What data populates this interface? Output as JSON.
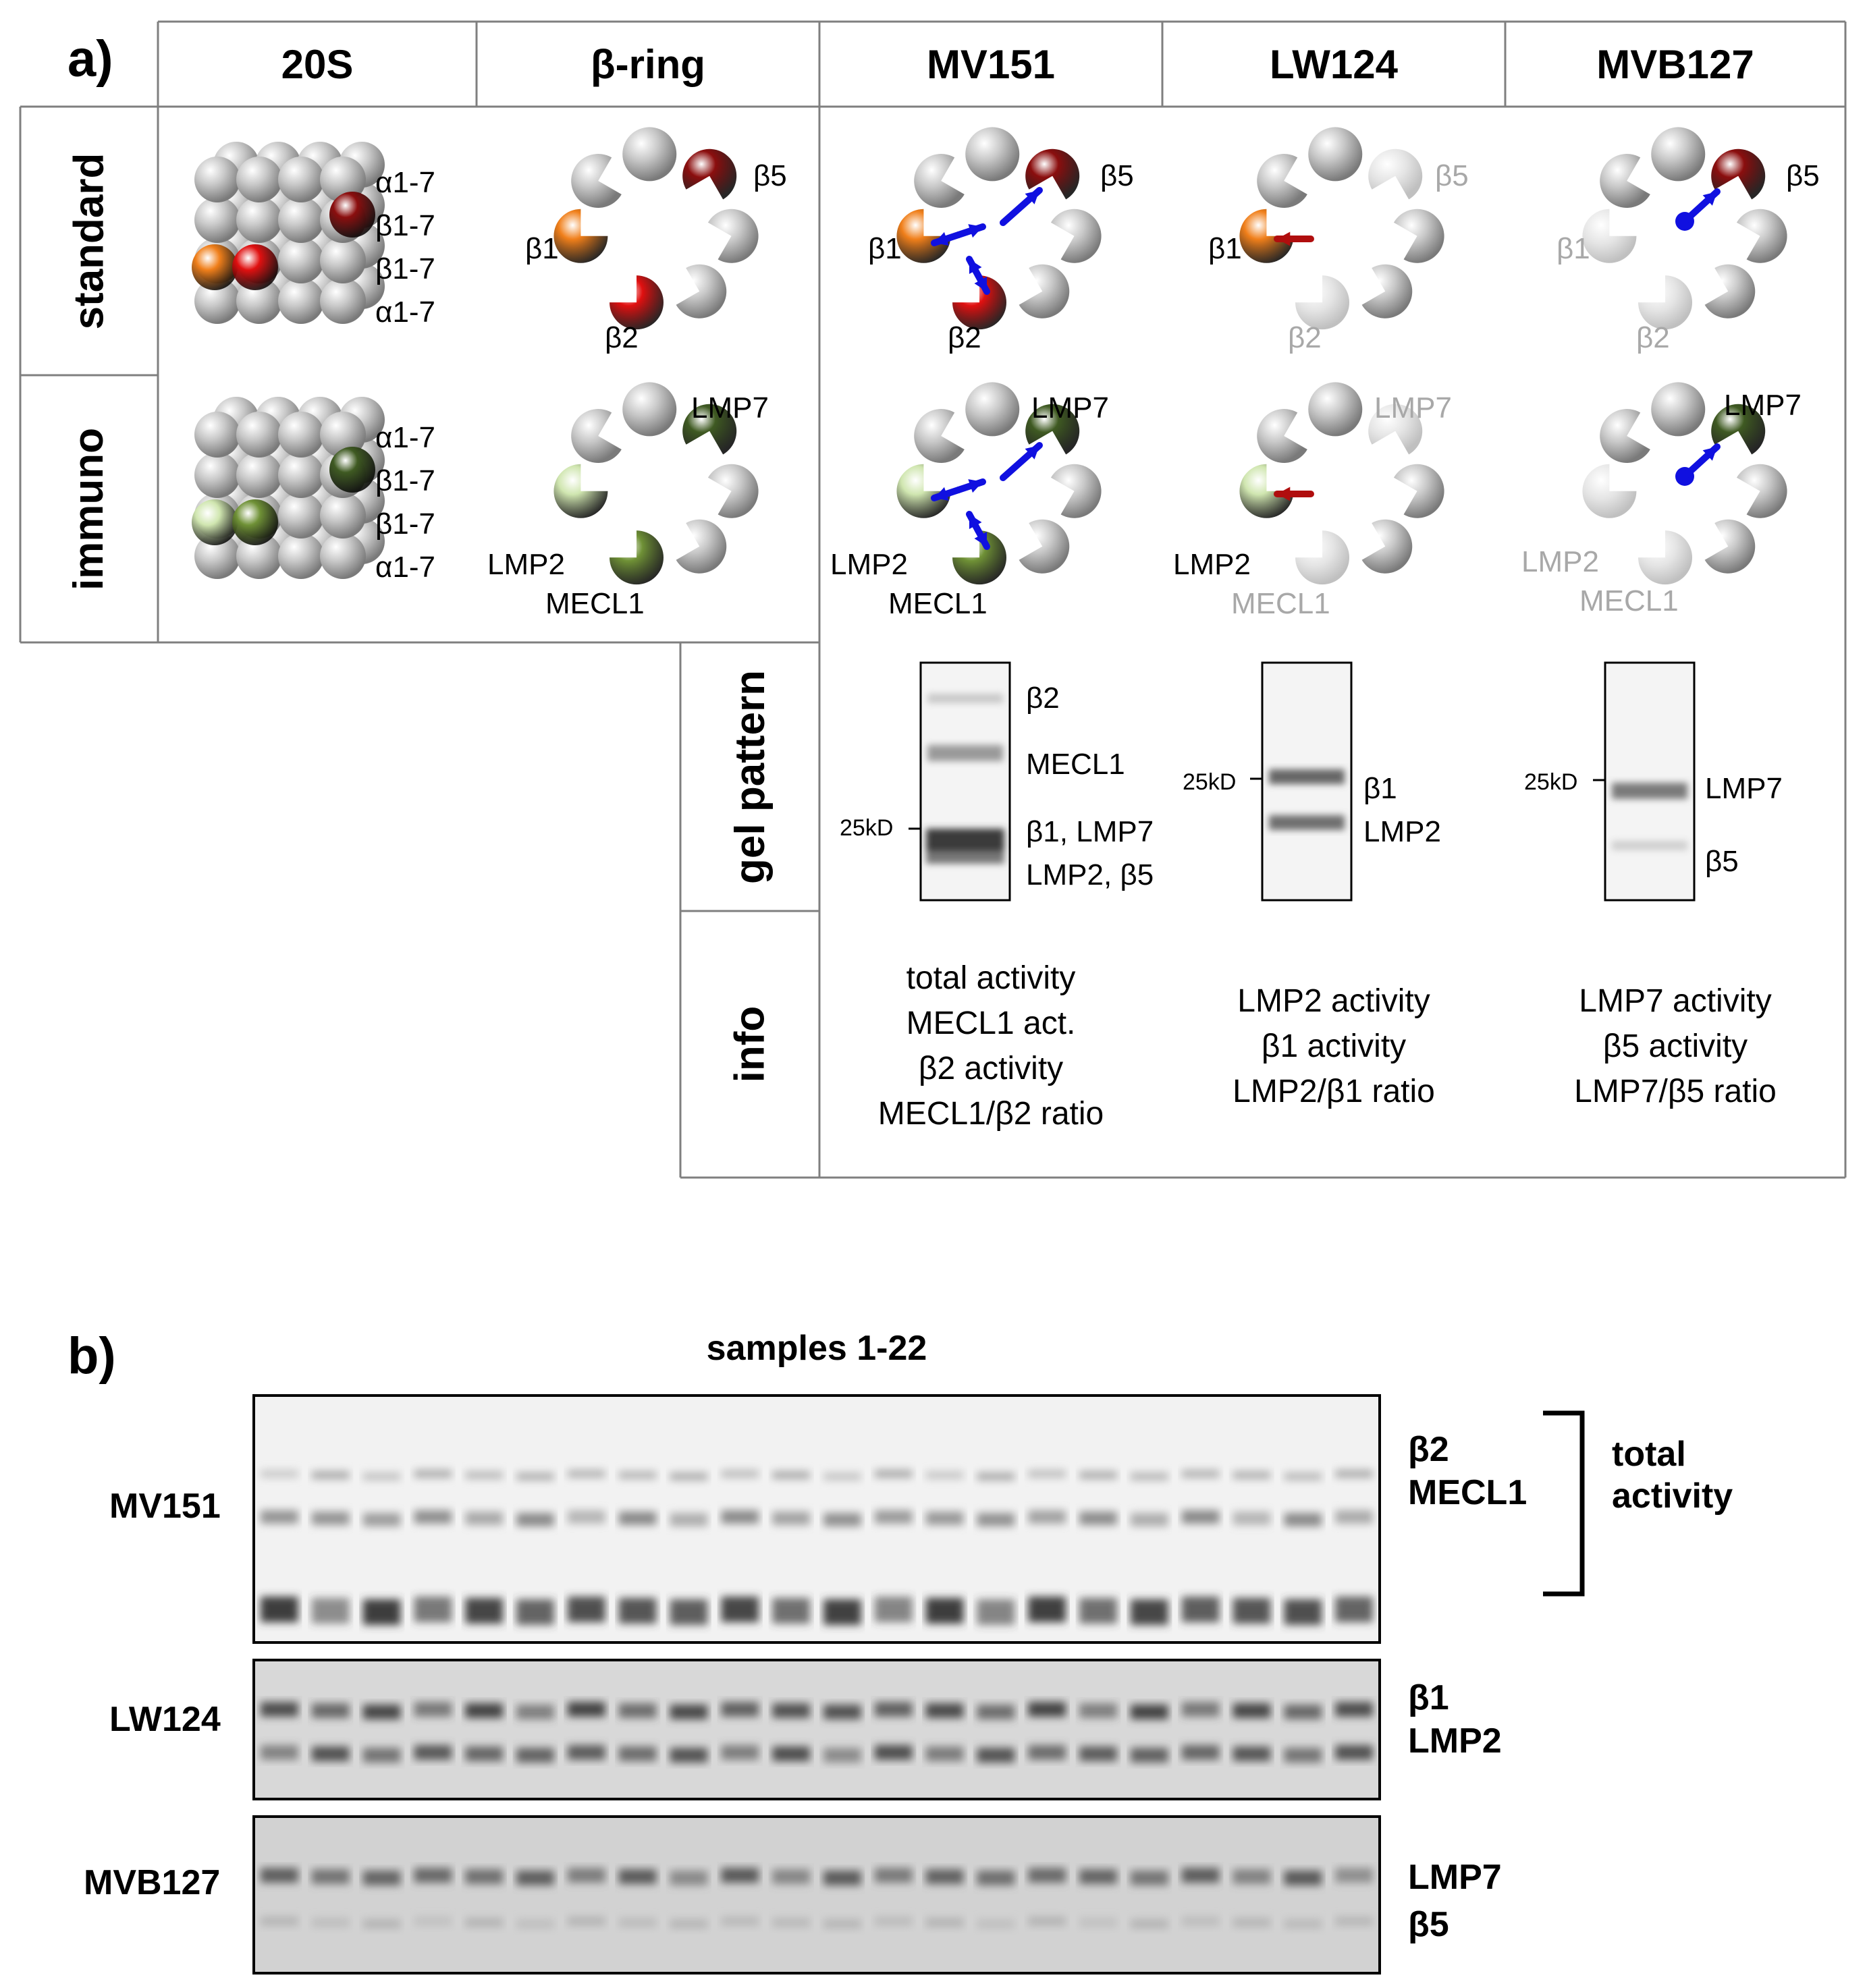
{
  "panel_a": {
    "label": "a)",
    "headers": [
      "20S",
      "β-ring",
      "MV151",
      "LW124",
      "MVB127"
    ],
    "rows": [
      "standard",
      "immuno"
    ],
    "lower_rows": [
      "gel pattern",
      "info"
    ],
    "cube_labels": {
      "standard": [
        "α1-7",
        "β1-7",
        "β1-7",
        "α1-7"
      ],
      "immuno": [
        "α1-7",
        "β1-7",
        "β1-7",
        "α1-7"
      ]
    },
    "ring_labels": {
      "standard": {
        "b1": "β1",
        "b2": "β2",
        "b5": "β5"
      },
      "immuno": {
        "b1": "LMP2",
        "b2": "MECL1",
        "b5": "LMP7"
      }
    },
    "gels": {
      "MV151": {
        "bands": [
          "β2",
          "MECL1",
          "β1, LMP7",
          "LMP2, β5"
        ],
        "marker": "25kD"
      },
      "LW124": {
        "bands": [
          "β1",
          "LMP2"
        ],
        "marker": "25kD"
      },
      "MVB127": {
        "bands": [
          "LMP7",
          "β5"
        ],
        "marker": "25kD"
      }
    },
    "info": {
      "MV151": [
        "total activity",
        "MECL1 act.",
        "β2 activity",
        "MECL1/β2 ratio"
      ],
      "LW124": [
        "LMP2 activity",
        "β1 activity",
        "LMP2/β1 ratio"
      ],
      "MVB127": [
        "LMP7 activity",
        "β5 activity",
        "LMP7/β5 ratio"
      ]
    }
  },
  "panel_b": {
    "label": "b)",
    "title": "samples 1-22",
    "sample_count": 22,
    "gels": [
      {
        "probe": "MV151",
        "bands": [
          "β2",
          "MECL1"
        ]
      },
      {
        "probe": "LW124",
        "bands": [
          "β1",
          "LMP2"
        ]
      },
      {
        "probe": "MVB127",
        "bands": [
          "LMP7",
          "β5"
        ]
      }
    ],
    "bracket_label": [
      "total",
      "activity"
    ]
  },
  "colors": {
    "beta1": "#f07f1a",
    "beta2": "#e01010",
    "beta5": "#8b0e0e",
    "lmp2": "#d0e6b0",
    "mecl1": "#6f9136",
    "lmp7": "#3f5a22",
    "probe_arrow": "#1010e0",
    "lw124_arrow": "#b00e0e",
    "grid": "#7f7f7f",
    "faded": "#a8a8a8"
  }
}
